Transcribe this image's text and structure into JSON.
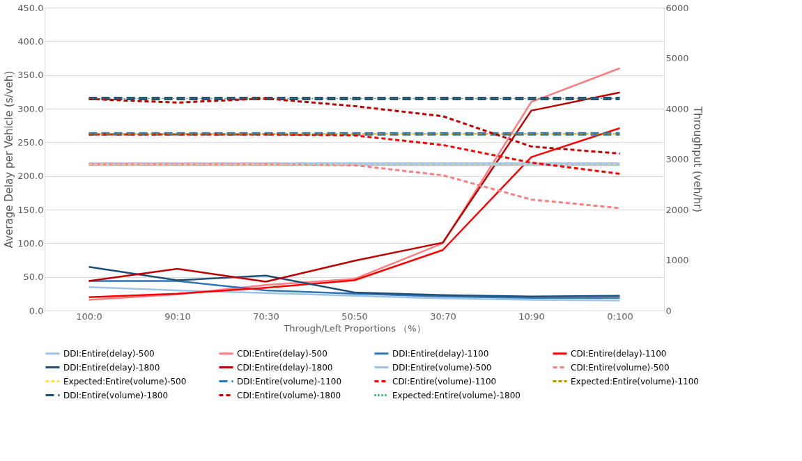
{
  "chart_data": {
    "type": "line",
    "xlabel": "Through/Left Proportions （%）",
    "ylabel": "Average Delay per Vehicle (s/veh)",
    "y2label": "Throughput (veh/hr)",
    "categories": [
      "100:0",
      "90:10",
      "70:30",
      "50:50",
      "30:70",
      "10:90",
      "0:100"
    ],
    "ylim": [
      0,
      450
    ],
    "yticks": [
      {
        "value": 0,
        "label": "0.0"
      },
      {
        "value": 50,
        "label": "50.0"
      },
      {
        "value": 100,
        "label": "100.0"
      },
      {
        "value": 150,
        "label": "150.0"
      },
      {
        "value": 200,
        "label": "200.0"
      },
      {
        "value": 250,
        "label": "250.0"
      },
      {
        "value": 300,
        "label": "300.0"
      },
      {
        "value": 350,
        "label": "350.0"
      },
      {
        "value": 400,
        "label": "400.0"
      },
      {
        "value": 450,
        "label": "450.0"
      }
    ],
    "y2lim": [
      0,
      6000
    ],
    "y2ticks": [
      0,
      1000,
      2000,
      3000,
      4000,
      5000,
      6000
    ],
    "grid": "y",
    "legend": "bottom",
    "marker": "none",
    "series": [
      {
        "name": "DDI:Entire(delay)-500",
        "color": "#9dc3e6",
        "line_style": "solid",
        "values": [
          35,
          30,
          26,
          22,
          18,
          16,
          15
        ]
      },
      {
        "name": "CDI:Entire(delay)-500",
        "color": "#ff7c80",
        "line_style": "solid",
        "values": [
          16,
          24,
          38,
          47,
          100,
          310,
          360
        ]
      },
      {
        "name": "DDI:Entire(delay)-1100",
        "color": "#2e75b6",
        "line_style": "solid",
        "values": [
          44,
          44,
          30,
          25,
          21,
          19,
          19
        ]
      },
      {
        "name": "CDI:Entire(delay)-1100",
        "color": "#ff0000",
        "line_style": "solid",
        "values": [
          20,
          25,
          34,
          45,
          90,
          228,
          271
        ]
      },
      {
        "name": "DDI:Entire(delay)-1800",
        "color": "#1f4e79",
        "line_style": "solid",
        "values": [
          65,
          45,
          52,
          27,
          23,
          21,
          22
        ]
      },
      {
        "name": "CDI:Entire(delay)-1800",
        "color": "#c00000",
        "line_style": "solid",
        "values": [
          44,
          62,
          43,
          74,
          101,
          297,
          324
        ]
      },
      {
        "name": "DDI:Entire(volume)-500",
        "color": "#9dc3e6",
        "line_style": "solid",
        "axis": "y2",
        "values": [
          2900,
          2900,
          2900,
          2900,
          2900,
          2900,
          2900
        ]
      },
      {
        "name": "CDI:Entire(volume)-500",
        "color": "#ff7c80",
        "line_style": "dashed",
        "axis": "y2",
        "values": [
          2900,
          2900,
          2900,
          2880,
          2680,
          2200,
          2030
        ]
      },
      {
        "name": "Expected:Entire(volume)-500",
        "color": "#ffd966",
        "line_style": "dashed",
        "axis": "y2",
        "values": [
          2900,
          2900,
          2900,
          2900,
          2900,
          2900,
          2900
        ]
      },
      {
        "name": "DDI:Entire(volume)-1100",
        "color": "#2e75b6",
        "line_style": "dashed",
        "axis": "y2",
        "values": [
          3500,
          3500,
          3500,
          3500,
          3500,
          3500,
          3500
        ]
      },
      {
        "name": "CDI:Entire(volume)-1100",
        "color": "#ff0000",
        "line_style": "dashed",
        "axis": "y2",
        "values": [
          3490,
          3490,
          3490,
          3470,
          3280,
          2930,
          2710
        ]
      },
      {
        "name": "Expected:Entire(volume)-1100",
        "color": "#bf9000",
        "line_style": "dashed",
        "axis": "y2",
        "values": [
          3500,
          3500,
          3500,
          3500,
          3500,
          3500,
          3500
        ]
      },
      {
        "name": "DDI:Entire(volume)-1800",
        "color": "#1f4e79",
        "line_style": "dashed",
        "axis": "y2",
        "values": [
          4200,
          4200,
          4200,
          4200,
          4200,
          4200,
          4200
        ]
      },
      {
        "name": "CDI:Entire(volume)-1800",
        "color": "#c00000",
        "line_style": "dashed",
        "axis": "y2",
        "values": [
          4190,
          4120,
          4200,
          4050,
          3850,
          3250,
          3110
        ]
      },
      {
        "name": "Expected:Entire(volume)-1800",
        "color": "#00b050",
        "line_style": "dotted",
        "axis": "y2",
        "values": [
          4200,
          4200,
          4200,
          4200,
          4200,
          4200,
          4200
        ]
      }
    ]
  }
}
